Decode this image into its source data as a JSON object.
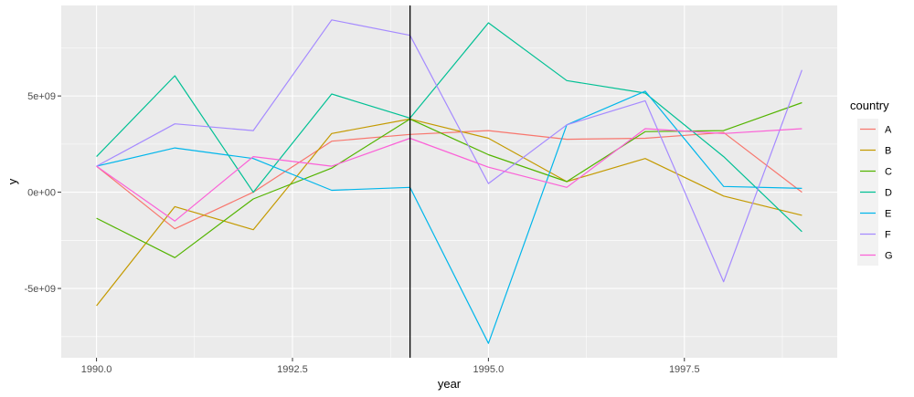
{
  "chart_data": {
    "type": "line",
    "xlabel": "year",
    "ylabel": "y",
    "xlim": [
      1989.55,
      1999.45
    ],
    "ylim": [
      -8600000000.0,
      9700000000.0
    ],
    "x_ticks": [
      1990,
      1992.5,
      1995,
      1997.5
    ],
    "x_tick_labels": [
      "1990.0",
      "1992.5",
      "1995.0",
      "1997.5"
    ],
    "y_ticks": [
      -5000000000.0,
      0,
      5000000000.0
    ],
    "y_tick_labels": [
      "-5e+09",
      "0e+00",
      "5e+09"
    ],
    "vline": 1994,
    "grid": true,
    "legend_title": "country",
    "legend_position": "right",
    "x": [
      1990,
      1991,
      1992,
      1993,
      1994,
      1995,
      1996,
      1997,
      1998,
      1999
    ],
    "series": [
      {
        "name": "A",
        "color": "#F8766D",
        "values": [
          1350000000.0,
          -1900000000.0,
          0.0,
          2650000000.0,
          3000000000.0,
          3200000000.0,
          2750000000.0,
          2800000000.0,
          3100000000.0,
          0.0
        ]
      },
      {
        "name": "B",
        "color": "#C49A00",
        "values": [
          -5900000000.0,
          -750000000.0,
          -1950000000.0,
          3050000000.0,
          3800000000.0,
          2800000000.0,
          550000000.0,
          1750000000.0,
          -200000000.0,
          -1200000000.0
        ]
      },
      {
        "name": "C",
        "color": "#53B400",
        "values": [
          -1350000000.0,
          -3400000000.0,
          -350000000.0,
          1250000000.0,
          3800000000.0,
          1950000000.0,
          550000000.0,
          3150000000.0,
          3200000000.0,
          4650000000.0
        ]
      },
      {
        "name": "D",
        "color": "#00C094",
        "values": [
          1850000000.0,
          6050000000.0,
          0.0,
          5100000000.0,
          3850000000.0,
          8800000000.0,
          5800000000.0,
          5150000000.0,
          1850000000.0,
          -2050000000.0
        ]
      },
      {
        "name": "E",
        "color": "#00B6EB",
        "values": [
          1350000000.0,
          2300000000.0,
          1750000000.0,
          100000000.0,
          250000000.0,
          -7850000000.0,
          3500000000.0,
          5250000000.0,
          300000000.0,
          200000000.0
        ]
      },
      {
        "name": "F",
        "color": "#A58AFF",
        "values": [
          1350000000.0,
          3550000000.0,
          3200000000.0,
          8950000000.0,
          8150000000.0,
          450000000.0,
          3500000000.0,
          4750000000.0,
          -4650000000.0,
          6350000000.0
        ]
      },
      {
        "name": "G",
        "color": "#FB61D7",
        "values": [
          1350000000.0,
          -1500000000.0,
          1850000000.0,
          1350000000.0,
          2800000000.0,
          1300000000.0,
          250000000.0,
          3300000000.0,
          3050000000.0,
          3300000000.0
        ]
      }
    ]
  }
}
